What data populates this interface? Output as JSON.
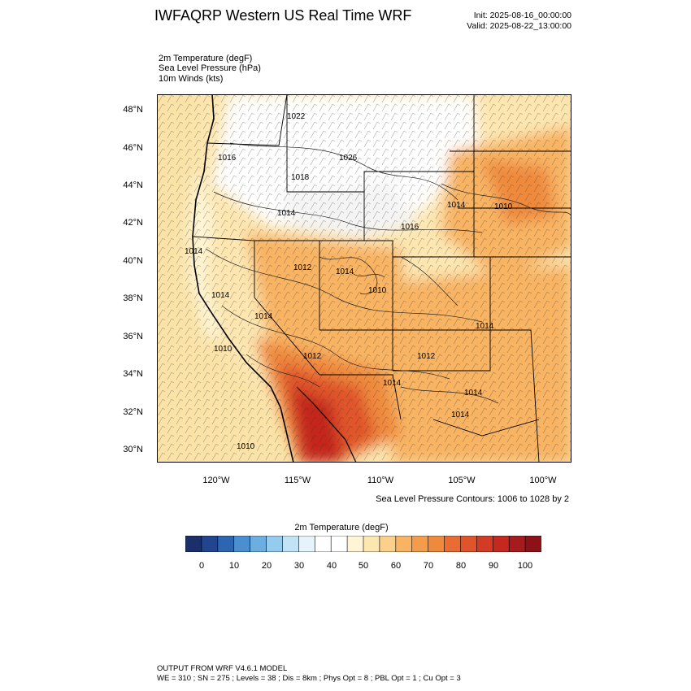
{
  "header": {
    "title": "IWFAQRP Western US Real Time WRF",
    "init": "Init: 2025-08-16_00:00:00",
    "valid": "Valid: 2025-08-22_13:00:00"
  },
  "fields": [
    "2m Temperature   (degF)",
    "Sea Level Pressure   (hPa)",
    "10m Winds   (kts)"
  ],
  "map": {
    "lat_labels": [
      "48°N",
      "46°N",
      "44°N",
      "42°N",
      "40°N",
      "38°N",
      "36°N",
      "34°N",
      "32°N",
      "30°N"
    ],
    "lon_labels": [
      "120°W",
      "115°W",
      "110°W",
      "105°W",
      "100°W"
    ],
    "pressure_labels": [
      "1022",
      "1016",
      "1026",
      "1018",
      "1014",
      "1016",
      "1014",
      "1010",
      "1014",
      "1012",
      "1014",
      "1010",
      "1014",
      "1010",
      "1012",
      "1014",
      "1012",
      "1014",
      "1014",
      "1010",
      "1014",
      "1014"
    ],
    "colors": {
      "ocean": "#fbe3a8",
      "cool": "#ffffff",
      "mild": "#fde6b0",
      "warm": "#f8b464",
      "hot": "#ef8a3c",
      "very_hot": "#e0542c",
      "extreme": "#c4281f"
    }
  },
  "contour_note": "Sea Level Pressure Contours: 1006 to 1028 by 2",
  "colorbar": {
    "title": "2m Temperature  (degF)",
    "ticks": [
      "0",
      "10",
      "20",
      "30",
      "40",
      "50",
      "60",
      "70",
      "80",
      "90",
      "100"
    ],
    "colors": [
      "#1b2f6b",
      "#21458f",
      "#2e65b0",
      "#4a8fcf",
      "#6caee0",
      "#95cbee",
      "#c2e2f5",
      "#e6f3fb",
      "#ffffff",
      "#ffffff",
      "#fff5d6",
      "#fde6b0",
      "#fbd08a",
      "#f8b464",
      "#f39c4b",
      "#ef8a3c",
      "#e86c33",
      "#e0542c",
      "#d23c26",
      "#c4281f",
      "#a51b1e",
      "#8c1218"
    ]
  },
  "footer": [
    "OUTPUT FROM WRF V4.6.1 MODEL",
    "WE = 310 ; SN = 275 ; Levels = 38 ; Dis = 8km ; Phys Opt = 8 ; PBL Opt = 1 ; Cu Opt = 3"
  ]
}
